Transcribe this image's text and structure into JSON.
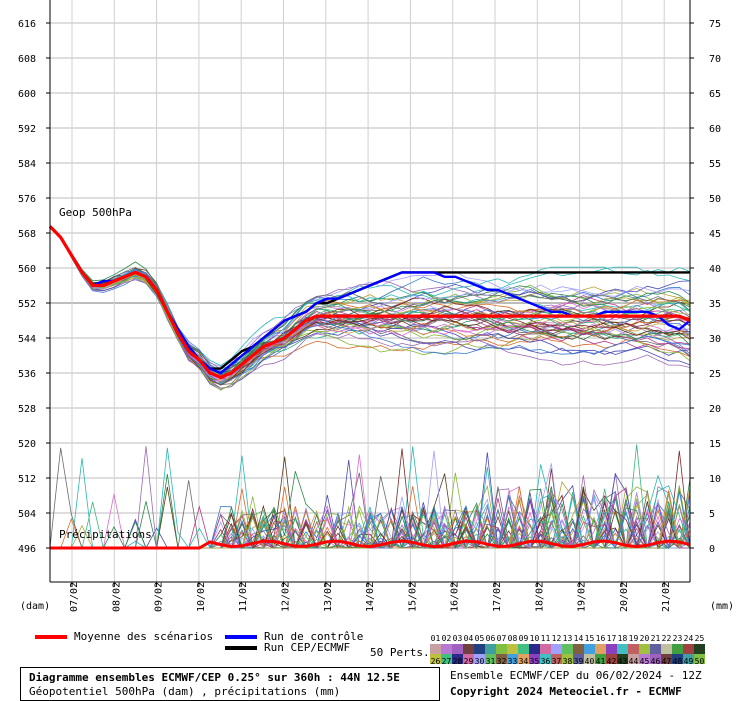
{
  "chart_data": {
    "type": "line",
    "left_axis_ticks": [
      "616",
      "608",
      "600",
      "592",
      "584",
      "576",
      "568",
      "560",
      "552",
      "544",
      "536",
      "528",
      "520",
      "512",
      "504",
      "496"
    ],
    "right_axis_ticks": [
      "75",
      "70",
      "65",
      "60",
      "55",
      "50",
      "45",
      "40",
      "35",
      "30",
      "25",
      "20",
      "15",
      "10",
      "5",
      "0"
    ],
    "left_axis_unit": "(dam)",
    "right_axis_unit": "(mm)",
    "x_ticks": [
      "07/02",
      "08/02",
      "09/02",
      "10/02",
      "11/02",
      "12/02",
      "13/02",
      "14/02",
      "15/02",
      "16/02",
      "17/02",
      "18/02",
      "19/02",
      "20/02",
      "21/02"
    ],
    "geop_label": "Geop 500hPa",
    "precip_label": "Précipitations",
    "ylim_geop": [
      494,
      618
    ],
    "ylim_precip": [
      0,
      78
    ],
    "grid": true,
    "series": [
      {
        "name": "Moyenne des scénarios",
        "color": "#ff0000",
        "x": [
          0,
          1,
          2,
          3,
          4,
          5,
          6,
          7,
          8,
          9,
          10,
          11,
          12,
          13,
          14,
          15,
          16,
          17,
          18,
          19,
          20,
          21,
          22,
          23,
          24,
          25,
          26,
          27,
          28,
          29,
          30,
          31,
          32,
          33,
          34,
          35,
          36,
          37,
          38,
          39,
          40,
          41,
          42,
          43,
          44,
          45,
          46,
          47,
          48,
          49,
          50,
          51,
          52,
          53,
          54,
          55,
          56,
          57,
          58,
          59,
          60
        ],
        "values": [
          569.5,
          567,
          563,
          559,
          556,
          556,
          557,
          558,
          559,
          558,
          555,
          550,
          545,
          541,
          539,
          536,
          535,
          536,
          538,
          540,
          542,
          543,
          544,
          546,
          548,
          549,
          549,
          549,
          549,
          549,
          549,
          549,
          549,
          549,
          549,
          549,
          549,
          549,
          549,
          549,
          549,
          549,
          549,
          549,
          549,
          549,
          549,
          549,
          549,
          549,
          549,
          549,
          549,
          549,
          549,
          549,
          549,
          549,
          549,
          549,
          548
        ]
      },
      {
        "name": "Run de contrôle",
        "color": "#0000ff",
        "x": [
          0,
          1,
          2,
          3,
          4,
          5,
          6,
          7,
          8,
          9,
          10,
          11,
          12,
          13,
          14,
          15,
          16,
          17,
          18,
          19,
          20,
          21,
          22,
          23,
          24,
          25,
          26,
          27,
          28,
          29,
          30,
          31,
          32,
          33,
          34,
          35,
          36,
          37,
          38,
          39,
          40,
          41,
          42,
          43,
          44,
          45,
          46,
          47,
          48,
          49,
          50,
          51,
          52,
          53,
          54,
          55,
          56,
          57,
          58,
          59,
          60
        ],
        "values": [
          569.5,
          567,
          563,
          559,
          556,
          557,
          557,
          558,
          559,
          558,
          555,
          550,
          546,
          542,
          539,
          537,
          536,
          538,
          540,
          542,
          544,
          546,
          548,
          549,
          550,
          552,
          553,
          553,
          554,
          555,
          556,
          557,
          558,
          559,
          559,
          559,
          559,
          558,
          558,
          557,
          556,
          555,
          555,
          554,
          553,
          552,
          551,
          550,
          550,
          549,
          549,
          549,
          550,
          550,
          550,
          550,
          550,
          549,
          547,
          546,
          548
        ]
      },
      {
        "name": "Run CEP/ECMWF",
        "color": "#000000",
        "x": [
          0,
          1,
          2,
          3,
          4,
          5,
          6,
          7,
          8,
          9,
          10,
          11,
          12,
          13,
          14,
          15,
          16,
          17,
          18,
          19,
          20,
          21,
          22,
          23,
          24,
          25,
          26,
          27,
          28,
          29,
          30,
          31,
          32,
          33,
          34,
          35,
          36,
          37,
          38,
          39,
          40,
          41,
          42,
          43,
          44,
          45,
          46,
          47,
          48,
          49,
          50,
          51,
          52,
          53,
          54,
          55,
          56,
          57,
          58,
          59,
          60
        ],
        "values": [
          569.5,
          567,
          563,
          559,
          556,
          557,
          557,
          558,
          559,
          558,
          555,
          550,
          546,
          542,
          539,
          537,
          537,
          539,
          541,
          542,
          544,
          546,
          548,
          549,
          550,
          552,
          552,
          553,
          554,
          555,
          556,
          557,
          558,
          559,
          559,
          559,
          559,
          559,
          559,
          559,
          559,
          559,
          559,
          559,
          559,
          559,
          559,
          559,
          559,
          559,
          559,
          559,
          559,
          559,
          559,
          559,
          559,
          559,
          559,
          559,
          559
        ]
      }
    ]
  },
  "legend": {
    "mean_label": "Moyenne des scénarios",
    "control_label": "Run de contrôle",
    "cep_label": "Run CEP/ECMWF",
    "perts_label": "50 Perts.",
    "mean_color": "#ff0000",
    "control_color": "#0000ff",
    "cep_color": "#000000"
  },
  "perts_top": [
    "01",
    "02",
    "03",
    "04",
    "05",
    "06",
    "07",
    "08",
    "09",
    "10",
    "11",
    "12",
    "13",
    "14",
    "15",
    "16",
    "17",
    "18",
    "19",
    "20",
    "21",
    "22",
    "23",
    "24",
    "25"
  ],
  "perts_bottom": [
    "26",
    "27",
    "28",
    "29",
    "30",
    "31",
    "32",
    "33",
    "34",
    "35",
    "36",
    "37",
    "38",
    "39",
    "40",
    "41",
    "42",
    "43",
    "44",
    "45",
    "46",
    "47",
    "48",
    "49",
    "50"
  ],
  "info": {
    "title": "Diagramme ensembles ECMWF/CEP 0.25° sur 360h : 44N 12.5E",
    "subtitle": "Géopotentiel 500hPa (dam) , précipitations (mm)"
  },
  "right_info": {
    "line1": "Ensemble ECMWF/CEP du 06/02/2024 - 12Z",
    "line2": "Copyright 2024 Meteociel.fr - ECMWF"
  }
}
